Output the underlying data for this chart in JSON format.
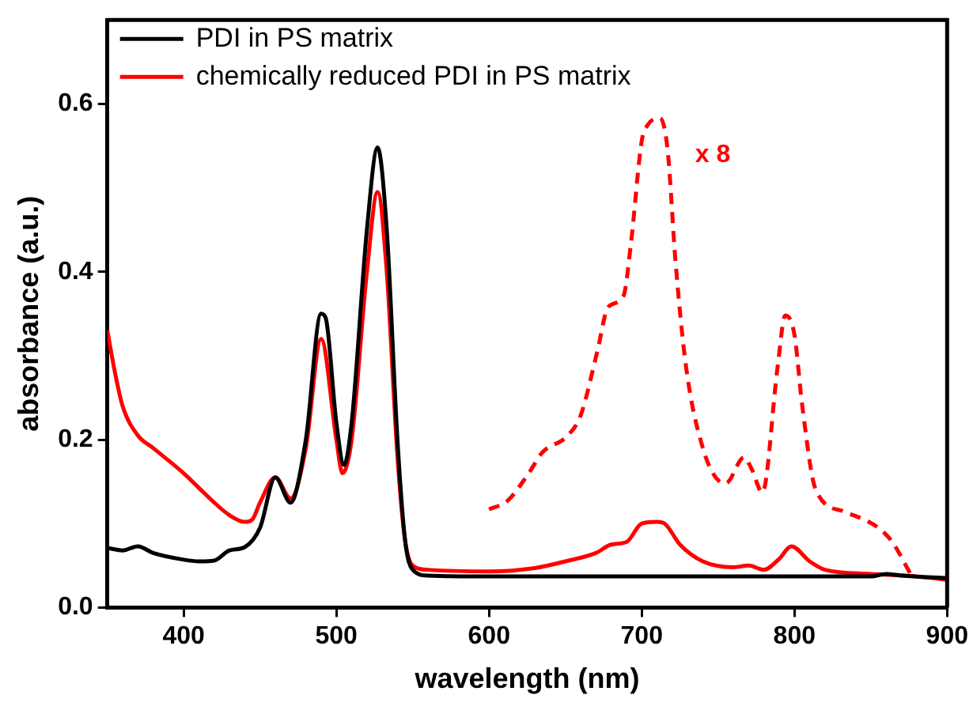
{
  "chart_data": {
    "type": "line",
    "xlabel": "wavelength (nm)",
    "ylabel": "absorbance (a.u.)",
    "xlim": [
      350,
      900
    ],
    "xticks": [
      400,
      500,
      600,
      700,
      800,
      900
    ],
    "ylim": [
      0,
      0.7
    ],
    "yticks": [
      {
        "value": 0,
        "label": "0.0"
      },
      {
        "value": 0.2,
        "label": "0.2"
      },
      {
        "value": 0.4,
        "label": "0.4"
      },
      {
        "value": 0.6,
        "label": "0.6"
      }
    ],
    "grid": false,
    "legend": "top left",
    "marker": "none",
    "annotations": [
      "x 8"
    ],
    "series": [
      {
        "name": "PDI in PS matrix",
        "color": "#000000",
        "line_style": "solid",
        "x": [
          350,
          360,
          370,
          380,
          400,
          410,
          420,
          430,
          440,
          450,
          460,
          470,
          480,
          490,
          493,
          500,
          505,
          510,
          520,
          527,
          533,
          540,
          545,
          550,
          560,
          600,
          700,
          800,
          850,
          860,
          870,
          900
        ],
        "values": [
          0.071,
          0.068,
          0.073,
          0.065,
          0.057,
          0.055,
          0.056,
          0.068,
          0.072,
          0.095,
          0.155,
          0.125,
          0.2,
          0.35,
          0.345,
          0.22,
          0.17,
          0.22,
          0.45,
          0.548,
          0.45,
          0.2,
          0.08,
          0.045,
          0.038,
          0.037,
          0.037,
          0.037,
          0.037,
          0.04,
          0.038,
          0.035
        ]
      },
      {
        "name": "chemically reduced PDI in PS matrix",
        "color": "#ff0000",
        "line_style": "solid",
        "x": [
          350,
          355,
          360,
          370,
          380,
          400,
          420,
          430,
          440,
          445,
          450,
          460,
          470,
          480,
          490,
          500,
          504,
          510,
          520,
          527,
          533,
          540,
          545,
          550,
          560,
          600,
          630,
          650,
          670,
          680,
          690,
          700,
          710,
          715,
          725,
          740,
          760,
          770,
          780,
          790,
          798,
          810,
          820,
          850,
          880,
          900
        ],
        "values": [
          0.33,
          0.28,
          0.24,
          0.205,
          0.19,
          0.16,
          0.125,
          0.11,
          0.102,
          0.105,
          0.125,
          0.155,
          0.13,
          0.19,
          0.32,
          0.2,
          0.16,
          0.2,
          0.4,
          0.495,
          0.4,
          0.18,
          0.08,
          0.05,
          0.045,
          0.043,
          0.047,
          0.055,
          0.065,
          0.075,
          0.078,
          0.1,
          0.102,
          0.1,
          0.075,
          0.055,
          0.048,
          0.05,
          0.045,
          0.058,
          0.073,
          0.055,
          0.045,
          0.04,
          0.037,
          0.033
        ]
      },
      {
        "color": "#ff0000",
        "line_style": "dashed",
        "x": [
          600,
          612,
          626,
          635,
          651,
          660,
          671,
          678,
          688,
          693,
          700,
          704,
          712,
          717,
          722,
          729,
          740,
          751,
          755,
          767,
          772,
          779,
          789,
          794,
          800,
          805,
          814,
          833,
          862,
          877
        ],
        "values": [
          0.117,
          0.127,
          0.16,
          0.185,
          0.204,
          0.229,
          0.306,
          0.358,
          0.371,
          0.435,
          0.556,
          0.575,
          0.583,
          0.544,
          0.415,
          0.287,
          0.19,
          0.15,
          0.148,
          0.179,
          0.165,
          0.137,
          0.287,
          0.348,
          0.325,
          0.242,
          0.14,
          0.114,
          0.083,
          0.037
        ]
      }
    ]
  }
}
